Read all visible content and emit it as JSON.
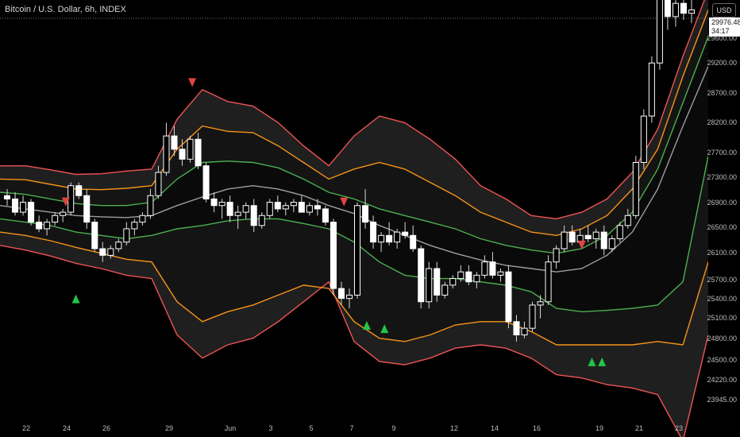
{
  "header": {
    "title": "Bitcoin / U.S. Dollar, 6h, INDEX",
    "currency": "USD",
    "last_price": "29976.48",
    "countdown": "34:17"
  },
  "colors": {
    "background": "#000000",
    "outer_band": "#f05454",
    "mid_band": "#f7931a",
    "inner_band": "#4caf50",
    "basis": "#9e9e9e",
    "up_candle": "#ffffff",
    "down_candle": "#ffffff",
    "buy_marker": "#21c44a",
    "sell_marker": "#e04444",
    "small_marker": "#b8651b"
  },
  "chart_data": {
    "type": "line",
    "title": "Bitcoin / U.S. Dollar, 6h, INDEX",
    "y_ticks": [
      "29600.00",
      "29200.00",
      "28700.00",
      "28200.00",
      "27700.00",
      "27300.00",
      "26900.00",
      "26500.00",
      "26100.00",
      "25700.00",
      "25400.00",
      "25100.00",
      "24800.00",
      "24500.00",
      "24220.00",
      "23945.00"
    ],
    "x_ticks": [
      "22",
      "24",
      "26",
      "29",
      "Jun",
      "3",
      "5",
      "7",
      "9",
      "12",
      "14",
      "16",
      "19",
      "21",
      "23"
    ],
    "series": [
      {
        "name": "basis",
        "values": [
          27050,
          27000,
          26950,
          26900,
          26880,
          26870,
          26900,
          27050,
          27180,
          27300,
          27350,
          27300,
          27200,
          27050,
          26930,
          26750,
          26600,
          26450,
          26330,
          26230,
          26150,
          26100,
          26050,
          26100,
          26300,
          26650,
          27300,
          28250,
          29150
        ]
      },
      {
        "name": "inner_upper",
        "values": [
          27250,
          27220,
          27150,
          27080,
          27050,
          27050,
          27100,
          27450,
          27700,
          27720,
          27700,
          27620,
          27450,
          27250,
          27150,
          27000,
          26900,
          26800,
          26700,
          26550,
          26450,
          26380,
          26330,
          26400,
          26600,
          26950,
          27600,
          28600,
          29600
        ]
      },
      {
        "name": "inner_lower",
        "values": [
          26850,
          26800,
          26750,
          26650,
          26600,
          26550,
          26600,
          26700,
          26750,
          26820,
          26850,
          26850,
          26780,
          26700,
          26500,
          26200,
          26000,
          25950,
          25950,
          25900,
          25850,
          25750,
          25500,
          25450,
          25470,
          25500,
          25550,
          25900,
          27800
        ]
      },
      {
        "name": "mid_upper",
        "values": [
          27450,
          27440,
          27370,
          27300,
          27290,
          27310,
          27350,
          27900,
          28250,
          28170,
          28150,
          27950,
          27700,
          27450,
          27600,
          27700,
          27600,
          27400,
          27200,
          26950,
          26800,
          26650,
          26600,
          26700,
          26900,
          27300,
          27900,
          29000,
          30000
        ]
      },
      {
        "name": "mid_lower",
        "values": [
          26650,
          26600,
          26520,
          26420,
          26330,
          26240,
          26200,
          25600,
          25300,
          25450,
          25550,
          25700,
          25850,
          25800,
          25300,
          25050,
          25000,
          25100,
          25250,
          25300,
          25300,
          25150,
          24950,
          24950,
          24950,
          24950,
          25000,
          24950,
          26200
        ]
      },
      {
        "name": "outer_upper",
        "values": [
          27650,
          27650,
          27590,
          27520,
          27530,
          27570,
          27600,
          28350,
          28800,
          28620,
          28550,
          28300,
          27950,
          27650,
          28100,
          28400,
          28300,
          28050,
          27750,
          27350,
          27150,
          26900,
          26850,
          26950,
          27150,
          27550,
          28200,
          29300,
          30300
        ]
      },
      {
        "name": "outer_lower",
        "values": [
          26450,
          26380,
          26290,
          26180,
          26100,
          26000,
          25950,
          25100,
          24750,
          24950,
          25050,
          25300,
          25600,
          25900,
          25000,
          24700,
          24650,
          24750,
          24900,
          24950,
          24900,
          24750,
          24500,
          24450,
          24350,
          24300,
          24200,
          23500,
          25100
        ]
      }
    ],
    "candles": [
      {
        "o": 27200,
        "h": 27300,
        "l": 27050,
        "c": 27150
      },
      {
        "o": 27150,
        "h": 27250,
        "l": 26900,
        "c": 26950
      },
      {
        "o": 26950,
        "h": 27200,
        "l": 26900,
        "c": 27100
      },
      {
        "o": 27100,
        "h": 27150,
        "l": 26750,
        "c": 26800
      },
      {
        "o": 26800,
        "h": 26900,
        "l": 26650,
        "c": 26700
      },
      {
        "o": 26700,
        "h": 26850,
        "l": 26600,
        "c": 26800
      },
      {
        "o": 26800,
        "h": 26950,
        "l": 26750,
        "c": 26900
      },
      {
        "o": 26900,
        "h": 27000,
        "l": 26800,
        "c": 26950
      },
      {
        "o": 26950,
        "h": 27400,
        "l": 26900,
        "c": 27350
      },
      {
        "o": 27350,
        "h": 27400,
        "l": 27150,
        "c": 27200
      },
      {
        "o": 27200,
        "h": 27300,
        "l": 26700,
        "c": 26800
      },
      {
        "o": 26800,
        "h": 26850,
        "l": 26350,
        "c": 26400
      },
      {
        "o": 26400,
        "h": 26500,
        "l": 26200,
        "c": 26300
      },
      {
        "o": 26300,
        "h": 26450,
        "l": 26250,
        "c": 26400
      },
      {
        "o": 26400,
        "h": 26550,
        "l": 26350,
        "c": 26500
      },
      {
        "o": 26500,
        "h": 26800,
        "l": 26450,
        "c": 26700
      },
      {
        "o": 26700,
        "h": 26850,
        "l": 26600,
        "c": 26800
      },
      {
        "o": 26800,
        "h": 26950,
        "l": 26750,
        "c": 26900
      },
      {
        "o": 26900,
        "h": 27300,
        "l": 26850,
        "c": 27200
      },
      {
        "o": 27200,
        "h": 27650,
        "l": 27150,
        "c": 27550
      },
      {
        "o": 27550,
        "h": 28300,
        "l": 27500,
        "c": 28100
      },
      {
        "o": 28100,
        "h": 28250,
        "l": 27800,
        "c": 27900
      },
      {
        "o": 27900,
        "h": 28050,
        "l": 27650,
        "c": 27750
      },
      {
        "o": 27750,
        "h": 28100,
        "l": 27700,
        "c": 28050
      },
      {
        "o": 28050,
        "h": 28150,
        "l": 27600,
        "c": 27650
      },
      {
        "o": 27650,
        "h": 27700,
        "l": 27100,
        "c": 27150
      },
      {
        "o": 27150,
        "h": 27250,
        "l": 26950,
        "c": 27050
      },
      {
        "o": 27050,
        "h": 27150,
        "l": 26850,
        "c": 27100
      },
      {
        "o": 27100,
        "h": 27200,
        "l": 26800,
        "c": 26900
      },
      {
        "o": 26900,
        "h": 27050,
        "l": 26700,
        "c": 26950
      },
      {
        "o": 26950,
        "h": 27100,
        "l": 26850,
        "c": 27050
      },
      {
        "o": 27050,
        "h": 27150,
        "l": 26650,
        "c": 26750
      },
      {
        "o": 26750,
        "h": 26950,
        "l": 26700,
        "c": 26900
      },
      {
        "o": 26900,
        "h": 27150,
        "l": 26850,
        "c": 27100
      },
      {
        "o": 27100,
        "h": 27200,
        "l": 26950,
        "c": 27000
      },
      {
        "o": 27000,
        "h": 27100,
        "l": 26900,
        "c": 27050
      },
      {
        "o": 27050,
        "h": 27150,
        "l": 26950,
        "c": 27100
      },
      {
        "o": 27100,
        "h": 27200,
        "l": 26950,
        "c": 26950
      },
      {
        "o": 26950,
        "h": 27100,
        "l": 26900,
        "c": 27050
      },
      {
        "o": 27050,
        "h": 27150,
        "l": 26900,
        "c": 27000
      },
      {
        "o": 27000,
        "h": 27050,
        "l": 26750,
        "c": 26800
      },
      {
        "o": 26800,
        "h": 26850,
        "l": 25700,
        "c": 25800
      },
      {
        "o": 25800,
        "h": 25900,
        "l": 25550,
        "c": 25650
      },
      {
        "o": 25650,
        "h": 25800,
        "l": 25500,
        "c": 25700
      },
      {
        "o": 25700,
        "h": 27100,
        "l": 25650,
        "c": 27050
      },
      {
        "o": 27050,
        "h": 27300,
        "l": 26700,
        "c": 26800
      },
      {
        "o": 26800,
        "h": 26900,
        "l": 26400,
        "c": 26500
      },
      {
        "o": 26500,
        "h": 26650,
        "l": 26350,
        "c": 26600
      },
      {
        "o": 26600,
        "h": 26800,
        "l": 26450,
        "c": 26500
      },
      {
        "o": 26500,
        "h": 26700,
        "l": 26400,
        "c": 26650
      },
      {
        "o": 26650,
        "h": 26800,
        "l": 26550,
        "c": 26600
      },
      {
        "o": 26600,
        "h": 26750,
        "l": 26350,
        "c": 26400
      },
      {
        "o": 26400,
        "h": 26450,
        "l": 25500,
        "c": 25600
      },
      {
        "o": 25600,
        "h": 26200,
        "l": 25500,
        "c": 26100
      },
      {
        "o": 26100,
        "h": 26200,
        "l": 25600,
        "c": 25700
      },
      {
        "o": 25700,
        "h": 25900,
        "l": 25650,
        "c": 25850
      },
      {
        "o": 25850,
        "h": 26000,
        "l": 25800,
        "c": 25950
      },
      {
        "o": 25950,
        "h": 26150,
        "l": 25900,
        "c": 26050
      },
      {
        "o": 26050,
        "h": 26150,
        "l": 25850,
        "c": 25900
      },
      {
        "o": 25900,
        "h": 26050,
        "l": 25800,
        "c": 26000
      },
      {
        "o": 26000,
        "h": 26300,
        "l": 25950,
        "c": 26200
      },
      {
        "o": 26200,
        "h": 26350,
        "l": 25950,
        "c": 26000
      },
      {
        "o": 26000,
        "h": 26100,
        "l": 25900,
        "c": 26050
      },
      {
        "o": 26050,
        "h": 26150,
        "l": 25200,
        "c": 25300
      },
      {
        "o": 25300,
        "h": 25400,
        "l": 25000,
        "c": 25100
      },
      {
        "o": 25100,
        "h": 25300,
        "l": 25050,
        "c": 25200
      },
      {
        "o": 25200,
        "h": 25600,
        "l": 25150,
        "c": 25550
      },
      {
        "o": 25550,
        "h": 25700,
        "l": 25350,
        "c": 25600
      },
      {
        "o": 25600,
        "h": 26300,
        "l": 25550,
        "c": 26200
      },
      {
        "o": 26200,
        "h": 26450,
        "l": 26100,
        "c": 26400
      },
      {
        "o": 26400,
        "h": 26750,
        "l": 26350,
        "c": 26650
      },
      {
        "o": 26650,
        "h": 26750,
        "l": 26450,
        "c": 26500
      },
      {
        "o": 26500,
        "h": 26700,
        "l": 26450,
        "c": 26600
      },
      {
        "o": 26600,
        "h": 26750,
        "l": 26500,
        "c": 26550
      },
      {
        "o": 26550,
        "h": 26700,
        "l": 26400,
        "c": 26650
      },
      {
        "o": 26650,
        "h": 26750,
        "l": 26300,
        "c": 26400
      },
      {
        "o": 26400,
        "h": 26600,
        "l": 26350,
        "c": 26550
      },
      {
        "o": 26550,
        "h": 26800,
        "l": 26500,
        "c": 26750
      },
      {
        "o": 26750,
        "h": 27000,
        "l": 26700,
        "c": 26900
      },
      {
        "o": 26900,
        "h": 27800,
        "l": 26850,
        "c": 27700
      },
      {
        "o": 27700,
        "h": 28500,
        "l": 27600,
        "c": 28400
      },
      {
        "o": 28400,
        "h": 29300,
        "l": 28300,
        "c": 29200
      },
      {
        "o": 29200,
        "h": 30400,
        "l": 29100,
        "c": 30200
      },
      {
        "o": 30200,
        "h": 30500,
        "l": 29700,
        "c": 29900
      },
      {
        "o": 29900,
        "h": 30300,
        "l": 29750,
        "c": 30100
      },
      {
        "o": 30100,
        "h": 30250,
        "l": 29850,
        "c": 29950
      },
      {
        "o": 29950,
        "h": 30150,
        "l": 29800,
        "c": 30000
      }
    ],
    "markers": [
      {
        "type": "sell",
        "x": 2.6,
        "y": 27100
      },
      {
        "type": "buy",
        "x": 3.0,
        "y": 25650
      },
      {
        "type": "sell",
        "x": 7.6,
        "y": 28900
      },
      {
        "type": "sell",
        "x": 13.6,
        "y": 27100
      },
      {
        "type": "buy",
        "x": 14.5,
        "y": 25250
      },
      {
        "type": "buy",
        "x": 15.2,
        "y": 25200
      },
      {
        "type": "sell",
        "x": 23.0,
        "y": 26450
      },
      {
        "type": "buy",
        "x": 23.4,
        "y": 24700
      },
      {
        "type": "buy",
        "x": 23.8,
        "y": 24700
      }
    ],
    "ylim": [
      23800,
      30150
    ],
    "xlim": [
      0,
      28
    ]
  }
}
